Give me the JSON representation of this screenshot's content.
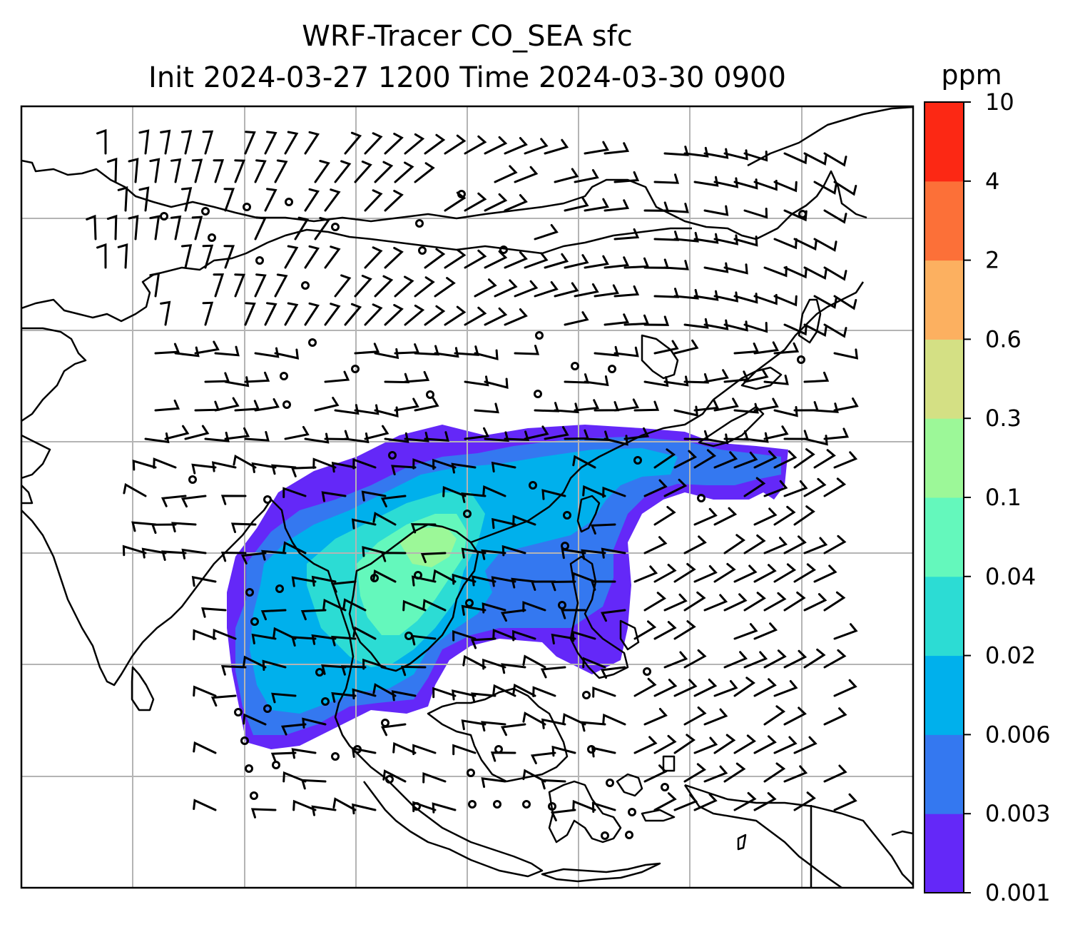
{
  "title": {
    "line1": "WRF-Tracer CO_SEA sfc",
    "line2": "Init 2024-03-27 1200 Time 2024-03-30 0900"
  },
  "colorbar": {
    "unit": "ppm",
    "levels": [
      "0.001",
      "0.003",
      "0.006",
      "0.02",
      "0.04",
      "0.1",
      "0.3",
      "0.6",
      "2",
      "4",
      "10"
    ],
    "colors": [
      "#6428f8",
      "#3478f0",
      "#00b0ec",
      "#2cdcd4",
      "#64f8bc",
      "#9cf898",
      "#d4e084",
      "#fcb060",
      "#fc7038",
      "#fc2814"
    ]
  },
  "map": {
    "type": "tracer-concentration-map-with-wind-barbs",
    "region": "Southeast Asia",
    "gridlines": true,
    "coastlines": true,
    "country_borders": true,
    "wind_barbs": true
  }
}
